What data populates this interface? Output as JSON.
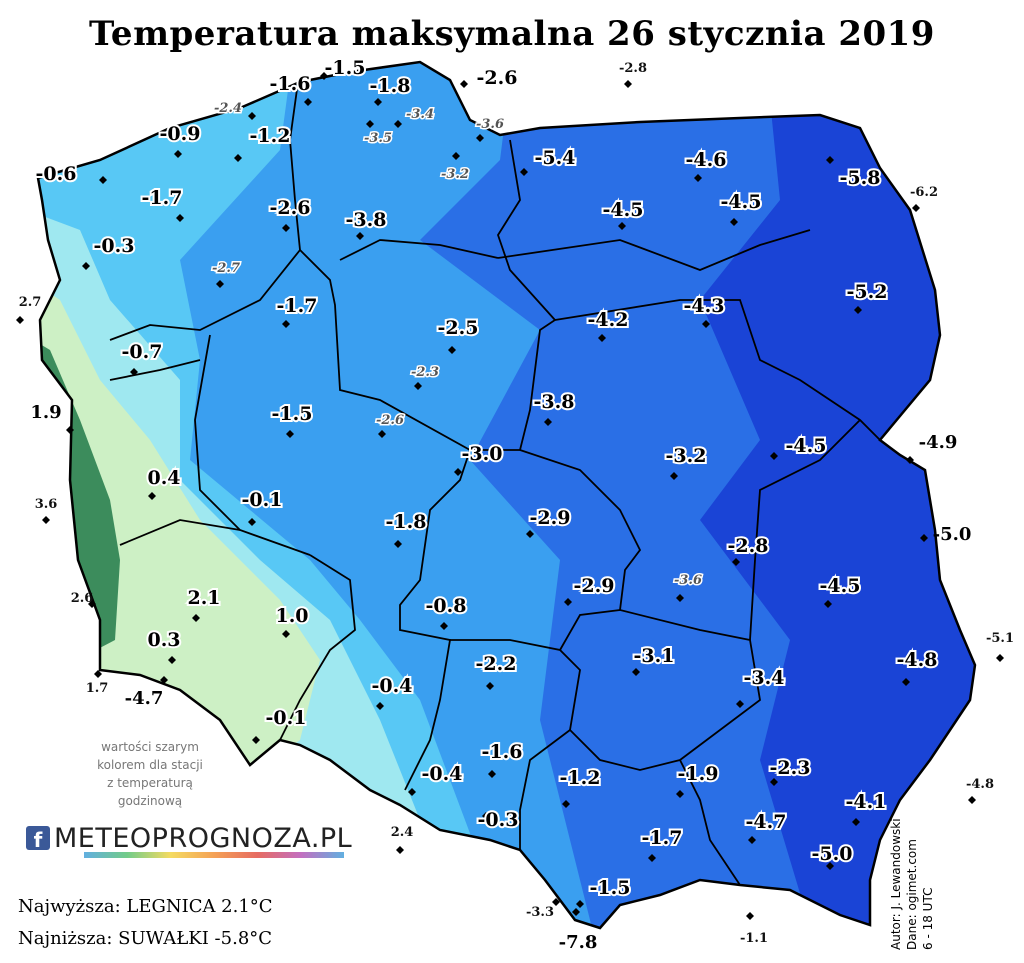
{
  "map": {
    "title": "Temperatura maksymalna 26 stycznia 2019",
    "legend_note_lines": [
      "wartości szarym",
      "kolorem dla stacji",
      "z temperaturą",
      "godzinową"
    ],
    "logo_text": "METEOPROGNOZA.PL",
    "logo_fb": "f",
    "highest": "Najwyższa: LEGNICA 2.1°C",
    "lowest": "Najniższa: SUWAŁKI -5.8°C",
    "author": "Autor: J. Lewandowski",
    "source": "Dane: ogimet.com",
    "hours": "6 - 18 UTC",
    "colors": {
      "very_cold": "#1a44d6",
      "cold": "#2a6fe6",
      "cool": "#3a9ff0",
      "mild": "#58c8f5",
      "light": "#9fe8f0",
      "warm": "#cdf0c5",
      "mountain": "#3c8c5c",
      "border": "#000000"
    },
    "stations": [
      {
        "v": "-1.6",
        "t": "main"
      },
      {
        "v": "-1.5",
        "t": "main"
      },
      {
        "v": "-1.8",
        "t": "main"
      },
      {
        "v": "-2.6",
        "t": "main"
      },
      {
        "v": "-2.4",
        "t": "gray"
      },
      {
        "v": "-3.4",
        "t": "gray"
      },
      {
        "v": "-3.6",
        "t": "gray"
      },
      {
        "v": "-3.5",
        "t": "gray"
      },
      {
        "v": "-1.2",
        "t": "main"
      },
      {
        "v": "-0.9",
        "t": "main"
      },
      {
        "v": "-3.2",
        "t": "gray"
      },
      {
        "v": "-0.6",
        "t": "main"
      },
      {
        "v": "-5.4",
        "t": "main"
      },
      {
        "v": "-4.6",
        "t": "main"
      },
      {
        "v": "-5.8",
        "t": "main"
      },
      {
        "v": "-1.7",
        "t": "main"
      },
      {
        "v": "-2.6",
        "t": "main"
      },
      {
        "v": "-3.8",
        "t": "main"
      },
      {
        "v": "-4.5",
        "t": "main"
      },
      {
        "v": "-4.5",
        "t": "main"
      },
      {
        "v": "-0.3",
        "t": "main"
      },
      {
        "v": "-2.7",
        "t": "gray"
      },
      {
        "v": "-1.7",
        "t": "main"
      },
      {
        "v": "-5.2",
        "t": "main"
      },
      {
        "v": "-4.2",
        "t": "main"
      },
      {
        "v": "-4.3",
        "t": "main"
      },
      {
        "v": "-2.5",
        "t": "main"
      },
      {
        "v": "-0.7",
        "t": "main"
      },
      {
        "v": "-2.3",
        "t": "gray"
      },
      {
        "v": "-3.8",
        "t": "main"
      },
      {
        "v": "-1.5",
        "t": "main"
      },
      {
        "v": "-2.6",
        "t": "gray"
      },
      {
        "v": "-3.0",
        "t": "main"
      },
      {
        "v": "-3.2",
        "t": "main"
      },
      {
        "v": "-4.5",
        "t": "main"
      },
      {
        "v": "0.4",
        "t": "main"
      },
      {
        "v": "-0.1",
        "t": "main"
      },
      {
        "v": "-1.8",
        "t": "main"
      },
      {
        "v": "-2.9",
        "t": "main"
      },
      {
        "v": "-2.8",
        "t": "main"
      },
      {
        "v": "-2.9",
        "t": "main"
      },
      {
        "v": "-3.6",
        "t": "gray"
      },
      {
        "v": "-4.5",
        "t": "main"
      },
      {
        "v": "2.1",
        "t": "main"
      },
      {
        "v": "1.0",
        "t": "main"
      },
      {
        "v": "-0.8",
        "t": "main"
      },
      {
        "v": "0.3",
        "t": "main"
      },
      {
        "v": "-2.2",
        "t": "main"
      },
      {
        "v": "-3.1",
        "t": "main"
      },
      {
        "v": "-3.4",
        "t": "main"
      },
      {
        "v": "-4.8",
        "t": "main"
      },
      {
        "v": "-0.4",
        "t": "main"
      },
      {
        "v": "-0.1",
        "t": "main"
      },
      {
        "v": "-1.6",
        "t": "main"
      },
      {
        "v": "-0.4",
        "t": "main"
      },
      {
        "v": "-1.2",
        "t": "main"
      },
      {
        "v": "-1.9",
        "t": "main"
      },
      {
        "v": "-2.3",
        "t": "main"
      },
      {
        "v": "-0.3",
        "t": "main"
      },
      {
        "v": "-1.7",
        "t": "main"
      },
      {
        "v": "-4.7",
        "t": "main"
      },
      {
        "v": "-4.1",
        "t": "main"
      },
      {
        "v": "-5.0",
        "t": "main"
      },
      {
        "v": "-1.5",
        "t": "main"
      },
      {
        "v": "-7.8",
        "t": "outside"
      }
    ],
    "outside_stations": [
      {
        "v": "-2.8",
        "t": "small"
      },
      {
        "v": "-6.2",
        "t": "small"
      },
      {
        "v": "2.7",
        "t": "small"
      },
      {
        "v": "1.9",
        "t": "large"
      },
      {
        "v": "3.6",
        "t": "small"
      },
      {
        "v": "2.6",
        "t": "small"
      },
      {
        "v": "1.7",
        "t": "small"
      },
      {
        "v": "-4.7",
        "t": "large"
      },
      {
        "v": "-4.9",
        "t": "large"
      },
      {
        "v": "-5.0",
        "t": "large"
      },
      {
        "v": "-5.1",
        "t": "small"
      },
      {
        "v": "-4.8",
        "t": "small"
      },
      {
        "v": "2.4",
        "t": "small"
      },
      {
        "v": "-3.3",
        "t": "small"
      },
      {
        "v": "-1.1",
        "t": "small"
      }
    ]
  }
}
